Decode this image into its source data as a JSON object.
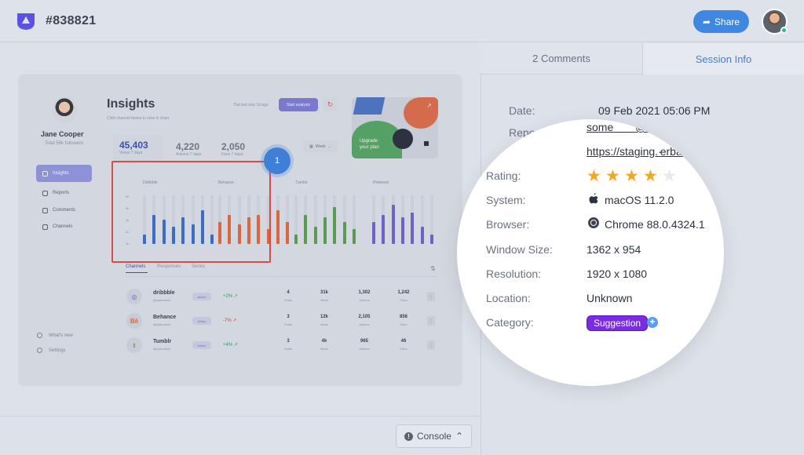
{
  "header": {
    "ticket_id": "#838821",
    "share_label": "Share",
    "logo_icon": "bugherd-logo-icon",
    "colors": {
      "accent": "#3f87e0",
      "online": "#24c27a"
    }
  },
  "preview": {
    "sidebar": {
      "user_name": "Jane Cooper",
      "user_sub": "Total 56k followers",
      "items": [
        {
          "label": "Insights",
          "icon": "home-icon",
          "active": true
        },
        {
          "label": "Reports",
          "icon": "chart-icon",
          "active": false
        },
        {
          "label": "Comments",
          "icon": "comment-icon",
          "active": false
        },
        {
          "label": "Channels",
          "icon": "send-icon",
          "active": false
        }
      ],
      "footer": [
        {
          "label": "What's new",
          "icon": "info-icon"
        },
        {
          "label": "Settings",
          "icon": "gear-icon"
        }
      ]
    },
    "title": "Insights",
    "subtitle": "Click channel below to view in chart",
    "last_was": "The last was 1d ago",
    "start_analysis": "Start analysis",
    "stats": [
      {
        "value": "45,403",
        "label": "Views 7 days"
      },
      {
        "value": "4,220",
        "label": "Actions 7 days"
      },
      {
        "value": "2,050",
        "label": "Fans 7 days"
      }
    ],
    "week_select": "Week",
    "upgrade_text_1": "Upgrade",
    "upgrade_text_2": "your plan",
    "marker_number": "1",
    "chart_data": {
      "type": "bar",
      "yticks": [
        "5k",
        "4k",
        "3k",
        "2k",
        "1k"
      ],
      "series": [
        {
          "name": "Dribbble",
          "color": "#3d6cc4",
          "values": [
            0.2,
            0.6,
            0.5,
            0.35,
            0.55,
            0.4,
            0.7,
            0.2
          ]
        },
        {
          "name": "Behance",
          "color": "#d9663f",
          "values": [
            0.45,
            0.6,
            0.4,
            0.55,
            0.6,
            0.3,
            0.7,
            0.45
          ]
        },
        {
          "name": "Tumblr",
          "color": "#5a9a52",
          "values": [
            0.2,
            0.6,
            0.35,
            0.55,
            0.75,
            0.45,
            0.3
          ]
        },
        {
          "name": "Pinterest",
          "color": "#6e62c4",
          "values": [
            0.45,
            0.6,
            0.8,
            0.55,
            0.65,
            0.35,
            0.2
          ]
        }
      ]
    },
    "table": {
      "tabs": [
        "Channels",
        "Responses",
        "Series"
      ],
      "rows": [
        {
          "icon": "dribbble-icon",
          "icon_text": "◎",
          "icon_color": "#3d6cc4",
          "name": "dribbble",
          "handle": "@cyberduck",
          "status": "Active",
          "change": "+2%",
          "change_color": "#2f9d5a",
          "posts": "4",
          "views": "31k",
          "actions": "1,302",
          "fans": "1,242"
        },
        {
          "icon": "behance-icon",
          "icon_text": "Bē",
          "icon_color": "#d9663f",
          "name": "Behance",
          "handle": "@cyberduck",
          "status": "Active",
          "change": "-7%",
          "change_color": "#d04848",
          "posts": "3",
          "views": "12k",
          "actions": "2,105",
          "fans": "856"
        },
        {
          "icon": "tumblr-icon",
          "icon_text": "t",
          "icon_color": "#5a9a52",
          "name": "Tumblr",
          "handle": "@cyberduck",
          "status": "Active",
          "change": "+4%",
          "change_color": "#2f9d5a",
          "posts": "3",
          "views": "4k",
          "actions": "965",
          "fans": "46"
        }
      ],
      "col_labels": {
        "posts": "Posts",
        "views": "Views",
        "actions": "Actions",
        "fans": "Fans"
      }
    },
    "console_label": "Console"
  },
  "panel": {
    "tabs": {
      "comments": "2 Comments",
      "session": "Session Info"
    },
    "date_label": "Date:",
    "date_value": "09 Feb 2021 05:06 PM",
    "reporter_label": "Repo",
    "reporter_value": "some",
    "reporter_domain": "@example.com",
    "url_value": "https://staging.",
    "url_tail": "erback.io"
  },
  "session": {
    "rating_label": "Rating:",
    "rating": 4,
    "rating_max": 5,
    "system_label": "System:",
    "system_value": "macOS 11.2.0",
    "browser_label": "Browser:",
    "browser_value": "Chrome 88.0.4324.1",
    "window_label": "Window Size:",
    "window_value": "1362 x 954",
    "resolution_label": "Resolution:",
    "resolution_value": "1920 x 1080",
    "location_label": "Location:",
    "location_value": "Unknown",
    "category_label": "Category:",
    "category_tag": "Suggestion",
    "tag_color": "#7b2be3"
  }
}
